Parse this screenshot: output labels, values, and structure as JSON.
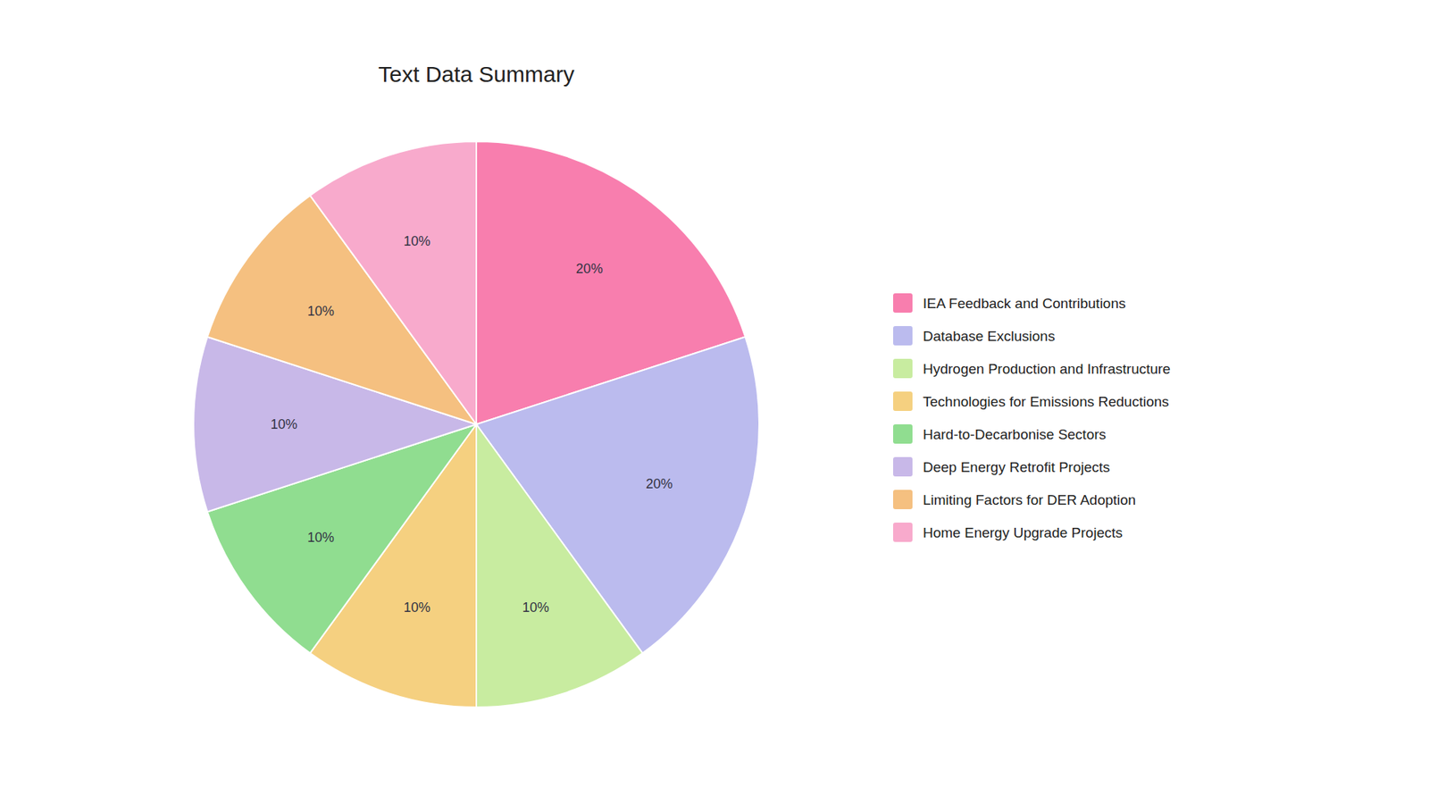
{
  "chart_data": {
    "type": "pie",
    "title": "Text Data Summary",
    "categories": [
      "IEA Feedback and Contributions",
      "Database Exclusions",
      "Hydrogen Production and Infrastructure",
      "Technologies for Emissions Reductions",
      "Hard-to-Decarbonise Sectors",
      "Deep Energy Retrofit Projects",
      "Limiting Factors for DER Adoption",
      "Home Energy Upgrade Projects"
    ],
    "values": [
      20,
      20,
      10,
      10,
      10,
      10,
      10,
      10
    ],
    "value_labels": [
      "20%",
      "20%",
      "10%",
      "10%",
      "10%",
      "10%",
      "10%",
      "10%"
    ],
    "colors": [
      "#F87EAE",
      "#BBBBEE",
      "#C8ECA0",
      "#F5D080",
      "#90DD90",
      "#C8B8E8",
      "#F5C080",
      "#F8AACC"
    ],
    "data_labels": true,
    "legend": "right"
  }
}
